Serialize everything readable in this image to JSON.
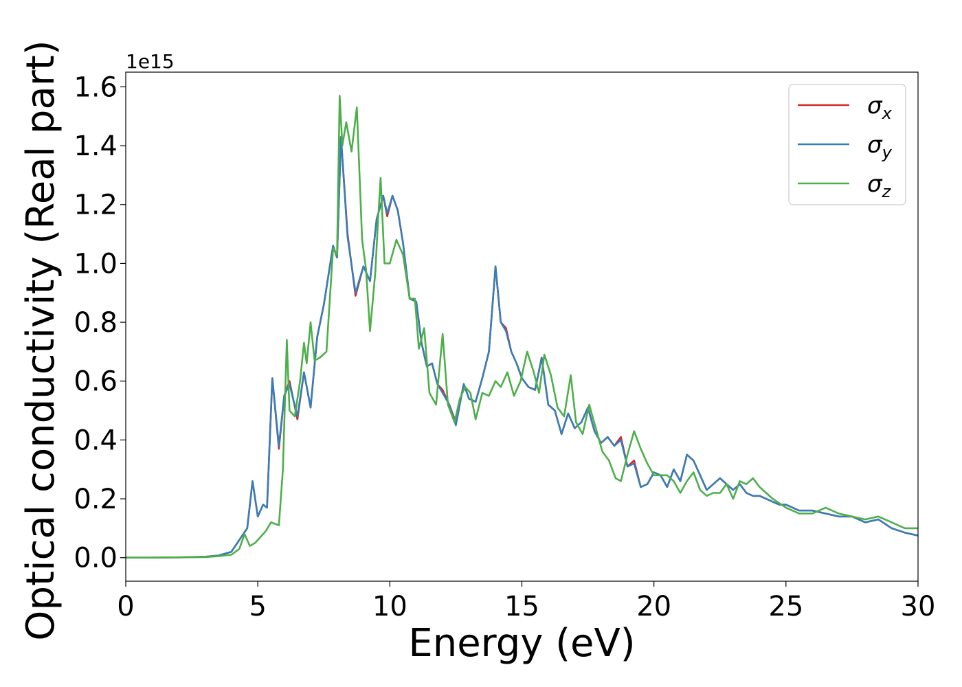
{
  "chart_data": {
    "type": "line",
    "title": "",
    "xlabel": "Energy (eV)",
    "ylabel": "Optical conductivity (Real part)",
    "y_offset_text": "1e15",
    "y_multiplier": 1000000000000000.0,
    "xlim": [
      0,
      30
    ],
    "ylim": [
      -0.08,
      1.65
    ],
    "xticks": [
      0,
      5,
      10,
      15,
      20,
      25,
      30
    ],
    "xtick_labels": [
      "0",
      "5",
      "10",
      "15",
      "20",
      "25",
      "30"
    ],
    "yticks": [
      0.0,
      0.2,
      0.4,
      0.6,
      0.8,
      1.0,
      1.2,
      1.4,
      1.6
    ],
    "ytick_labels": [
      "0.0",
      "0.2",
      "0.4",
      "0.6",
      "0.8",
      "1.0",
      "1.2",
      "1.4",
      "1.6"
    ],
    "grid": false,
    "legend_position": "top-right",
    "series": [
      {
        "name": "σx",
        "symbol": "σ",
        "subscript": "x",
        "color": "#d62728",
        "x": [
          0,
          1,
          2,
          3,
          3.5,
          4,
          4.3,
          4.6,
          4.8,
          5.0,
          5.2,
          5.35,
          5.55,
          5.8,
          6.0,
          6.2,
          6.5,
          6.75,
          7.0,
          7.25,
          7.5,
          7.85,
          8.0,
          8.15,
          8.4,
          8.7,
          9.0,
          9.25,
          9.5,
          9.75,
          9.9,
          10.1,
          10.3,
          10.5,
          10.75,
          11.0,
          11.2,
          11.4,
          11.6,
          11.8,
          12.0,
          12.25,
          12.5,
          12.8,
          13.0,
          13.25,
          13.5,
          13.75,
          14.0,
          14.2,
          14.4,
          14.6,
          14.8,
          15.0,
          15.25,
          15.5,
          15.75,
          16.0,
          16.25,
          16.5,
          16.75,
          17.0,
          17.25,
          17.5,
          17.75,
          18.0,
          18.25,
          18.5,
          18.75,
          19.0,
          19.25,
          19.5,
          19.75,
          20.0,
          20.25,
          20.5,
          20.75,
          21.0,
          21.25,
          21.5,
          21.75,
          22.0,
          22.25,
          22.5,
          22.75,
          23.0,
          23.25,
          23.5,
          23.75,
          24.0,
          24.25,
          24.5,
          24.75,
          25.0,
          25.5,
          26.0,
          26.5,
          27.0,
          27.5,
          28.0,
          28.5,
          29.0,
          29.5,
          30.0
        ],
        "values": [
          0.0,
          0.0,
          0.001,
          0.003,
          0.007,
          0.02,
          0.06,
          0.1,
          0.26,
          0.14,
          0.18,
          0.17,
          0.61,
          0.37,
          0.55,
          0.6,
          0.47,
          0.63,
          0.51,
          0.75,
          0.86,
          1.06,
          1.02,
          1.43,
          1.1,
          0.89,
          0.99,
          0.94,
          1.15,
          1.23,
          1.16,
          1.23,
          1.18,
          1.07,
          0.88,
          0.87,
          0.73,
          0.65,
          0.66,
          0.59,
          0.57,
          0.52,
          0.46,
          0.59,
          0.54,
          0.53,
          0.61,
          0.7,
          0.99,
          0.8,
          0.78,
          0.7,
          0.66,
          0.61,
          0.58,
          0.57,
          0.68,
          0.52,
          0.5,
          0.42,
          0.49,
          0.44,
          0.46,
          0.51,
          0.43,
          0.39,
          0.41,
          0.38,
          0.41,
          0.31,
          0.33,
          0.24,
          0.25,
          0.29,
          0.28,
          0.24,
          0.3,
          0.26,
          0.35,
          0.33,
          0.28,
          0.23,
          0.25,
          0.27,
          0.25,
          0.23,
          0.25,
          0.22,
          0.21,
          0.21,
          0.2,
          0.19,
          0.18,
          0.18,
          0.16,
          0.16,
          0.15,
          0.14,
          0.14,
          0.12,
          0.13,
          0.1,
          0.085,
          0.075
        ]
      },
      {
        "name": "σy",
        "symbol": "σ",
        "subscript": "y",
        "color": "#377eb8",
        "x": [
          0,
          1,
          2,
          3,
          3.5,
          4,
          4.3,
          4.6,
          4.8,
          5.0,
          5.2,
          5.35,
          5.55,
          5.8,
          6.0,
          6.2,
          6.5,
          6.75,
          7.0,
          7.25,
          7.5,
          7.85,
          8.0,
          8.15,
          8.4,
          8.7,
          9.0,
          9.25,
          9.5,
          9.75,
          9.9,
          10.1,
          10.3,
          10.5,
          10.75,
          11.0,
          11.2,
          11.4,
          11.6,
          11.8,
          12.0,
          12.25,
          12.5,
          12.8,
          13.0,
          13.25,
          13.5,
          13.75,
          14.0,
          14.2,
          14.4,
          14.6,
          14.8,
          15.0,
          15.25,
          15.5,
          15.75,
          16.0,
          16.25,
          16.5,
          16.75,
          17.0,
          17.25,
          17.5,
          17.75,
          18.0,
          18.25,
          18.5,
          18.75,
          19.0,
          19.25,
          19.5,
          19.75,
          20.0,
          20.25,
          20.5,
          20.75,
          21.0,
          21.25,
          21.5,
          21.75,
          22.0,
          22.25,
          22.5,
          22.75,
          23.0,
          23.25,
          23.5,
          23.75,
          24.0,
          24.25,
          24.5,
          24.75,
          25.0,
          25.5,
          26.0,
          26.5,
          27.0,
          27.5,
          28.0,
          28.5,
          29.0,
          29.5,
          30.0
        ],
        "values": [
          0.0,
          0.0,
          0.001,
          0.003,
          0.007,
          0.02,
          0.06,
          0.1,
          0.26,
          0.14,
          0.18,
          0.17,
          0.61,
          0.38,
          0.55,
          0.59,
          0.48,
          0.63,
          0.51,
          0.75,
          0.86,
          1.06,
          1.02,
          1.43,
          1.09,
          0.9,
          0.99,
          0.94,
          1.15,
          1.23,
          1.17,
          1.23,
          1.18,
          1.07,
          0.88,
          0.87,
          0.73,
          0.65,
          0.66,
          0.59,
          0.56,
          0.52,
          0.45,
          0.59,
          0.54,
          0.53,
          0.61,
          0.7,
          0.99,
          0.8,
          0.77,
          0.7,
          0.66,
          0.61,
          0.58,
          0.57,
          0.68,
          0.52,
          0.5,
          0.42,
          0.49,
          0.44,
          0.46,
          0.51,
          0.43,
          0.39,
          0.41,
          0.38,
          0.4,
          0.31,
          0.32,
          0.24,
          0.25,
          0.29,
          0.28,
          0.24,
          0.3,
          0.26,
          0.35,
          0.33,
          0.28,
          0.23,
          0.25,
          0.27,
          0.25,
          0.23,
          0.25,
          0.22,
          0.21,
          0.21,
          0.2,
          0.19,
          0.18,
          0.18,
          0.16,
          0.16,
          0.15,
          0.14,
          0.14,
          0.12,
          0.13,
          0.1,
          0.085,
          0.075
        ]
      },
      {
        "name": "σz",
        "symbol": "σ",
        "subscript": "z",
        "color": "#4daf4a",
        "x": [
          0,
          1,
          2,
          3,
          3.5,
          4,
          4.3,
          4.5,
          4.7,
          4.9,
          5.1,
          5.3,
          5.5,
          5.8,
          5.95,
          6.1,
          6.2,
          6.4,
          6.6,
          6.75,
          6.85,
          7.0,
          7.15,
          7.35,
          7.6,
          7.85,
          8.0,
          8.1,
          8.2,
          8.35,
          8.55,
          8.75,
          8.95,
          9.1,
          9.25,
          9.45,
          9.55,
          9.65,
          9.8,
          10.0,
          10.25,
          10.5,
          10.75,
          10.95,
          11.1,
          11.3,
          11.5,
          11.75,
          12.0,
          12.2,
          12.45,
          12.65,
          12.85,
          13.05,
          13.25,
          13.5,
          13.75,
          14.0,
          14.2,
          14.45,
          14.7,
          14.95,
          15.2,
          15.45,
          15.65,
          15.85,
          16.1,
          16.35,
          16.6,
          16.85,
          17.05,
          17.3,
          17.55,
          17.8,
          18.05,
          18.3,
          18.55,
          18.75,
          19.0,
          19.25,
          19.5,
          19.75,
          20.0,
          20.5,
          20.75,
          21.0,
          21.25,
          21.5,
          21.75,
          22.0,
          22.25,
          22.5,
          22.75,
          23.0,
          23.25,
          23.5,
          23.75,
          24.0,
          24.5,
          25.0,
          25.5,
          26.0,
          26.5,
          27.0,
          27.5,
          28.0,
          28.5,
          29.0,
          29.5,
          30.0
        ],
        "values": [
          0.0,
          0.0,
          0.001,
          0.002,
          0.005,
          0.01,
          0.03,
          0.08,
          0.04,
          0.05,
          0.07,
          0.09,
          0.12,
          0.11,
          0.3,
          0.74,
          0.5,
          0.48,
          0.6,
          0.73,
          0.66,
          0.8,
          0.67,
          0.68,
          0.7,
          1.05,
          1.03,
          1.57,
          1.4,
          1.48,
          1.38,
          1.53,
          1.08,
          0.98,
          0.77,
          0.97,
          1.14,
          1.29,
          1.0,
          1.0,
          1.08,
          1.03,
          0.88,
          0.88,
          0.71,
          0.78,
          0.56,
          0.52,
          0.76,
          0.52,
          0.46,
          0.54,
          0.58,
          0.56,
          0.47,
          0.56,
          0.55,
          0.6,
          0.58,
          0.63,
          0.55,
          0.6,
          0.7,
          0.63,
          0.56,
          0.69,
          0.62,
          0.51,
          0.48,
          0.62,
          0.46,
          0.42,
          0.52,
          0.44,
          0.36,
          0.33,
          0.27,
          0.26,
          0.35,
          0.43,
          0.37,
          0.32,
          0.28,
          0.28,
          0.26,
          0.22,
          0.26,
          0.29,
          0.23,
          0.21,
          0.22,
          0.22,
          0.25,
          0.2,
          0.26,
          0.25,
          0.27,
          0.24,
          0.2,
          0.17,
          0.15,
          0.15,
          0.17,
          0.15,
          0.14,
          0.13,
          0.14,
          0.12,
          0.1,
          0.1
        ]
      }
    ]
  }
}
